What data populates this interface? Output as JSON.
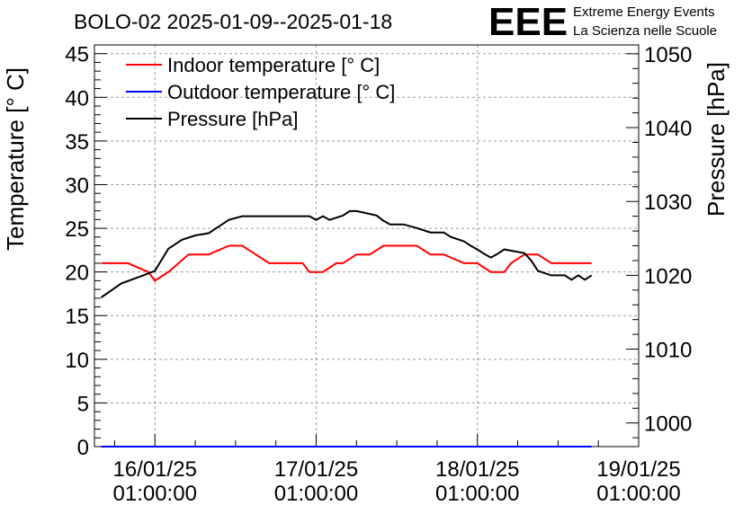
{
  "chart_data": {
    "type": "line",
    "title": "BOLO-02 2025-01-09--2025-01-18",
    "ylabel": "Temperature [° C]",
    "y2label": "Pressure [hPa]",
    "xlabel": "",
    "ylim": [
      0,
      46
    ],
    "y2lim": [
      996.8,
      1051.2
    ],
    "xlim": [
      "2025-01-15 16:00",
      "2025-01-19 01:00"
    ],
    "yticks": [
      0,
      5,
      10,
      15,
      20,
      25,
      30,
      35,
      40,
      45
    ],
    "ytick_labels": [
      "0",
      "5",
      "10",
      "15",
      "20",
      "25",
      "30",
      "35",
      "40",
      "45"
    ],
    "y2ticks": [
      1000,
      1010,
      1020,
      1030,
      1040,
      1050
    ],
    "y2tick_labels": [
      "1000",
      "1010",
      "1020",
      "1030",
      "1040",
      "1050"
    ],
    "xticks": [
      "2025-01-16 01:00",
      "2025-01-17 01:00",
      "2025-01-18 01:00",
      "2025-01-19 01:00"
    ],
    "xtick_labels": [
      {
        "date": "16/01/25",
        "time": "01:00:00"
      },
      {
        "date": "17/01/25",
        "time": "01:00:00"
      },
      {
        "date": "18/01/25",
        "time": "01:00:00"
      },
      {
        "date": "19/01/25",
        "time": "01:00:00"
      }
    ],
    "grid": true,
    "legend_position": "top-left",
    "series": [
      {
        "name": "Indoor temperature [° C]",
        "axis": "left",
        "color": "#ff0000",
        "x": [
          "2025-01-15 17:00",
          "2025-01-15 21:00",
          "2025-01-16 00:00",
          "2025-01-16 01:00",
          "2025-01-16 03:00",
          "2025-01-16 06:00",
          "2025-01-16 09:00",
          "2025-01-16 12:00",
          "2025-01-16 14:00",
          "2025-01-16 16:00",
          "2025-01-16 18:00",
          "2025-01-16 20:00",
          "2025-01-16 23:00",
          "2025-01-17 00:00",
          "2025-01-17 02:00",
          "2025-01-17 04:00",
          "2025-01-17 05:00",
          "2025-01-17 07:00",
          "2025-01-17 09:00",
          "2025-01-17 11:00",
          "2025-01-17 13:00",
          "2025-01-17 16:00",
          "2025-01-17 18:00",
          "2025-01-17 20:00",
          "2025-01-17 23:00",
          "2025-01-18 01:00",
          "2025-01-18 03:00",
          "2025-01-18 05:00",
          "2025-01-18 06:00",
          "2025-01-18 08:00",
          "2025-01-18 10:00",
          "2025-01-18 12:00",
          "2025-01-18 14:00",
          "2025-01-18 18:00"
        ],
        "y": [
          21,
          21,
          20,
          19,
          20,
          22,
          22,
          23,
          23,
          22,
          21,
          21,
          21,
          20,
          20,
          21,
          21,
          22,
          22,
          23,
          23,
          23,
          22,
          22,
          21,
          21,
          20,
          20,
          21,
          22,
          22,
          21,
          21,
          21
        ]
      },
      {
        "name": "Outdoor temperature [° C]",
        "axis": "left",
        "color": "#0000ff",
        "x": [
          "2025-01-15 17:00",
          "2025-01-18 18:00"
        ],
        "y": [
          0,
          0
        ]
      },
      {
        "name": "Pressure [hPa]",
        "axis": "right",
        "color": "#000000",
        "x": [
          "2025-01-15 17:00",
          "2025-01-15 20:00",
          "2025-01-15 23:00",
          "2025-01-16 01:00",
          "2025-01-16 03:00",
          "2025-01-16 05:00",
          "2025-01-16 07:00",
          "2025-01-16 09:00",
          "2025-01-16 10:00",
          "2025-01-16 11:00",
          "2025-01-16 12:00",
          "2025-01-16 14:00",
          "2025-01-16 15:00",
          "2025-01-16 18:00",
          "2025-01-17 00:00",
          "2025-01-17 01:00",
          "2025-01-17 02:00",
          "2025-01-17 03:00",
          "2025-01-17 05:00",
          "2025-01-17 06:00",
          "2025-01-17 07:00",
          "2025-01-17 10:00",
          "2025-01-17 11:00",
          "2025-01-17 12:00",
          "2025-01-17 14:00",
          "2025-01-17 16:00",
          "2025-01-17 18:00",
          "2025-01-17 20:00",
          "2025-01-17 21:00",
          "2025-01-17 23:00",
          "2025-01-18 00:00",
          "2025-01-18 01:00",
          "2025-01-18 02:00",
          "2025-01-18 03:00",
          "2025-01-18 04:00",
          "2025-01-18 05:00",
          "2025-01-18 08:00",
          "2025-01-18 09:00",
          "2025-01-18 10:00",
          "2025-01-18 12:00",
          "2025-01-18 14:00",
          "2025-01-18 15:00",
          "2025-01-18 16:00",
          "2025-01-18 17:00",
          "2025-01-18 18:00"
        ],
        "y": [
          1017.0,
          1018.9,
          1019.9,
          1020.6,
          1023.6,
          1024.8,
          1025.4,
          1025.7,
          1026.3,
          1026.9,
          1027.5,
          1028.0,
          1028.0,
          1028.0,
          1028.0,
          1027.5,
          1028.0,
          1027.5,
          1028.1,
          1028.7,
          1028.7,
          1028.1,
          1027.4,
          1026.9,
          1026.9,
          1026.4,
          1025.8,
          1025.8,
          1025.2,
          1024.6,
          1024.0,
          1023.5,
          1022.9,
          1022.4,
          1022.9,
          1023.5,
          1023.0,
          1022.0,
          1020.6,
          1020.0,
          1020.0,
          1019.4,
          1020.0,
          1019.4,
          1020.0
        ]
      }
    ]
  },
  "logo": {
    "text": "EEE",
    "line1": "Extreme Energy Events",
    "line2": "La Scienza nelle Scuole",
    "color": "#0000ff"
  }
}
